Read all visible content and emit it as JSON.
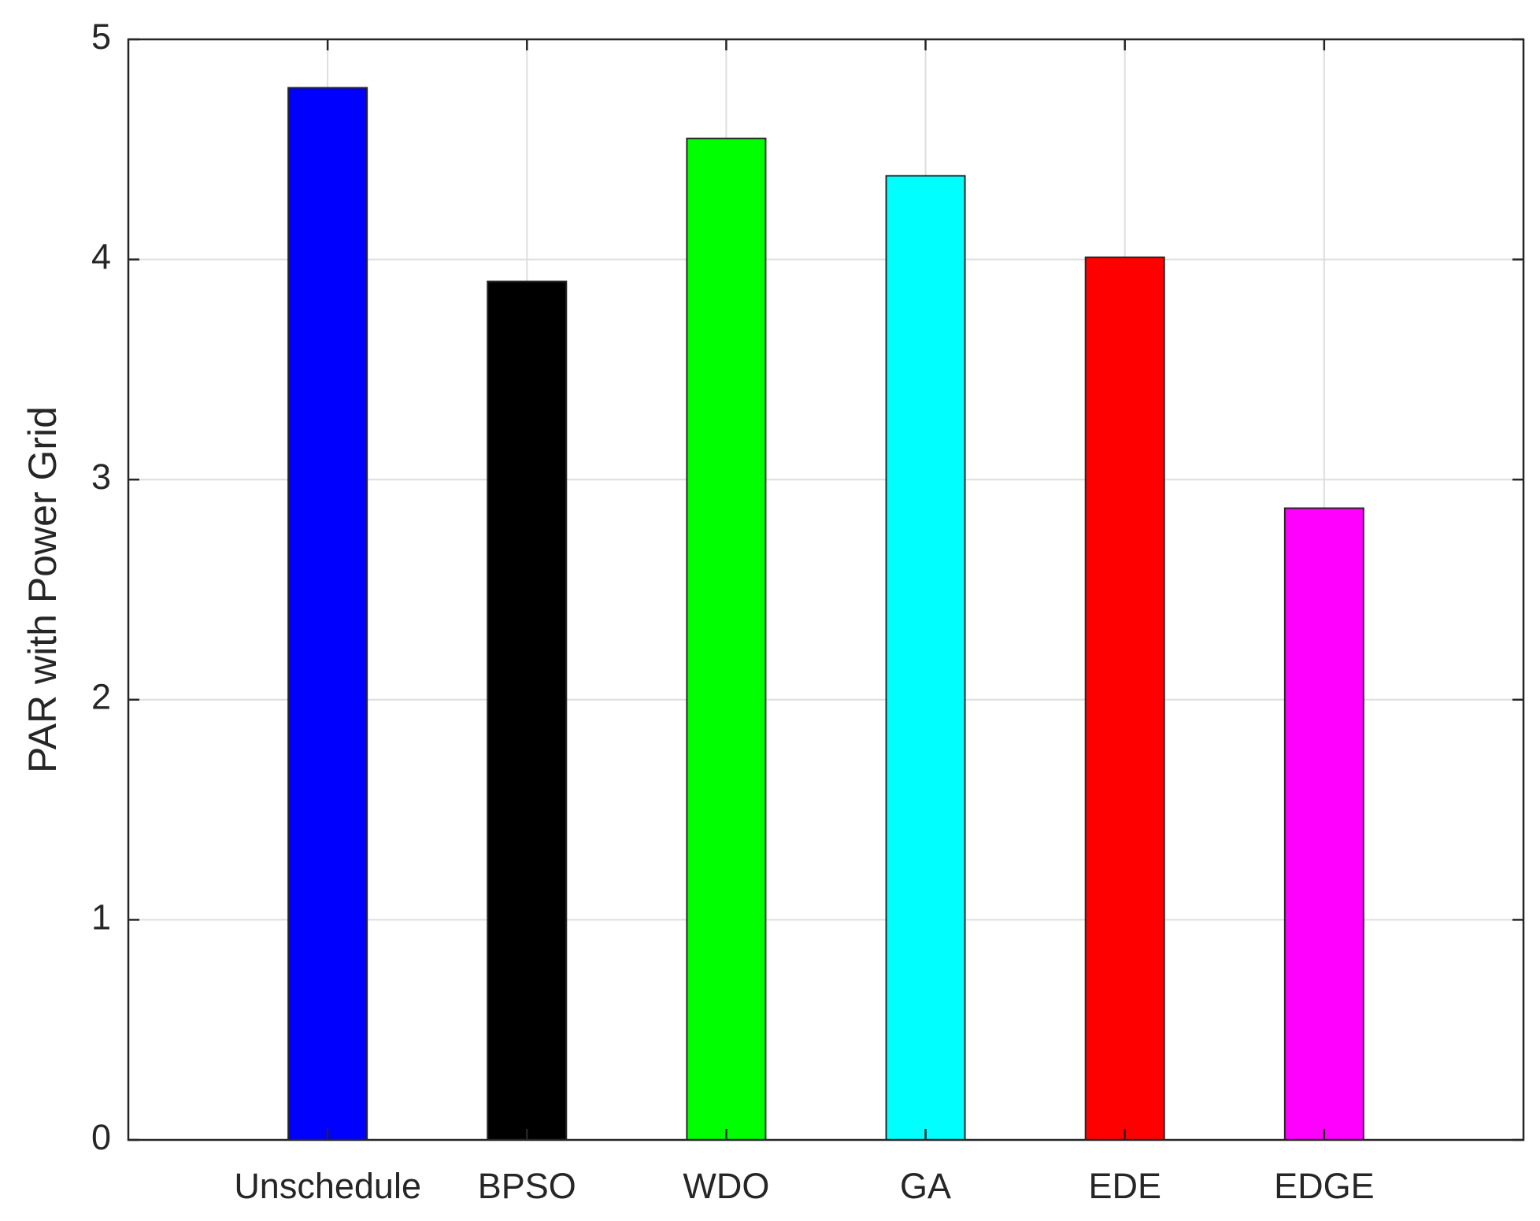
{
  "chart_data": {
    "type": "bar",
    "y_label": "PAR with Power Grid",
    "categories": [
      "Unschedule",
      "BPSO",
      "WDO",
      "GA",
      "EDE",
      "EDGE"
    ],
    "values": [
      4.78,
      3.9,
      4.55,
      4.38,
      4.01,
      2.87
    ],
    "colors": [
      "#0000ff",
      "#000000",
      "#00ff00",
      "#00ffff",
      "#ff0000",
      "#ff00ff"
    ],
    "ylim": [
      0,
      5
    ],
    "yticks": [
      0,
      1,
      2,
      3,
      4,
      5
    ],
    "grid": true
  }
}
